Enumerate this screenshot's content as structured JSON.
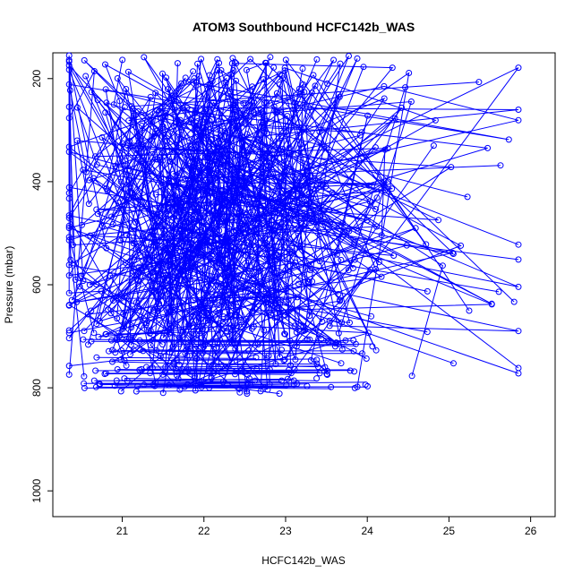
{
  "chart_data": {
    "type": "line",
    "title": "ATOM3 Southbound HCFC142b_WAS",
    "xlabel": "HCFC142b_WAS",
    "ylabel": "Pressure (mbar)",
    "xlim": [
      20.15,
      26.3
    ],
    "ylim": [
      1050,
      150
    ],
    "y_reversed": true,
    "grid": false,
    "legend": "none",
    "xticks": [
      21,
      22,
      23,
      24,
      25,
      26
    ],
    "yticks": [
      200,
      400,
      600,
      800,
      1000
    ],
    "marker": "open-circle",
    "series_color": "#0000ff",
    "profile_count": 120,
    "generation_seed": 7,
    "x_center": 22.1,
    "x_spread": 0.8,
    "p_min": 155,
    "p_max": 812
  }
}
